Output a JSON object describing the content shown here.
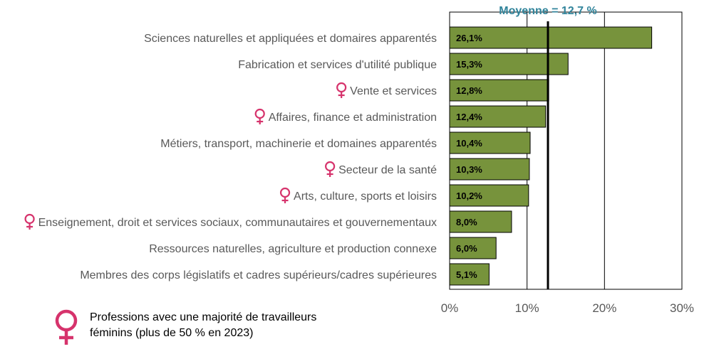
{
  "chart_data": {
    "type": "bar",
    "orientation": "horizontal",
    "categories": [
      "Sciences naturelles et appliquées et domaires apparentés",
      "Fabrication et services d'utilité publique",
      "Vente et services",
      "Affaires, finance et administration",
      "Métiers, transport, machinerie et domaines apparentés",
      "Secteur de la santé",
      "Arts, culture, sports et loisirs",
      "Enseignement, droit et services sociaux, communautaires et gouvernementaux",
      "Ressources naturelles, agriculture et production connexe",
      "Membres des corps législatifs et cadres supérieurs/cadres supérieures"
    ],
    "values": [
      26.1,
      15.3,
      12.8,
      12.4,
      10.4,
      10.3,
      10.2,
      8.0,
      6.0,
      5.1
    ],
    "value_labels": [
      "26,1%",
      "15,3%",
      "12,8%",
      "12,4%",
      "10,4%",
      "10,3%",
      "10,2%",
      "8,0%",
      "6,0%",
      "5,1%"
    ],
    "female_majority": [
      false,
      false,
      true,
      true,
      false,
      true,
      true,
      true,
      false,
      false
    ],
    "xlim": [
      0,
      30
    ],
    "x_ticks": [
      0,
      10,
      20,
      30
    ],
    "x_tick_labels": [
      "0%",
      "10%",
      "20%",
      "30%"
    ],
    "grid": true,
    "reference_line": {
      "value": 12.7,
      "label": "Moyenne = 12,7 %"
    },
    "legend": {
      "placement": "bottom-left",
      "text": "Professions avec une majorité de travailleurs féminins (plus de 50 % en 2023)"
    }
  },
  "colors": {
    "bar_fill": "#77933c",
    "bar_stroke": "#000000",
    "female_symbol": "#d6336c",
    "mean_label": "#31849b",
    "label_text": "#595959",
    "grid": "#000000"
  },
  "icons": {
    "female_marker": "female-symbol-icon"
  }
}
